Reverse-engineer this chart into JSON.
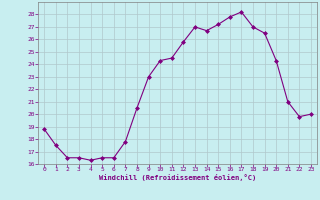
{
  "x": [
    0,
    1,
    2,
    3,
    4,
    5,
    6,
    7,
    8,
    9,
    10,
    11,
    12,
    13,
    14,
    15,
    16,
    17,
    18,
    19,
    20,
    21,
    22,
    23
  ],
  "y": [
    18.8,
    17.5,
    16.5,
    16.5,
    16.3,
    16.5,
    16.5,
    17.8,
    20.5,
    23.0,
    24.3,
    24.5,
    25.8,
    27.0,
    26.7,
    27.2,
    27.8,
    28.2,
    27.0,
    26.5,
    24.3,
    21.0,
    19.8,
    20.0
  ],
  "xlabel": "Windchill (Refroidissement éolien,°C)",
  "ylim": [
    16,
    29
  ],
  "xlim": [
    -0.5,
    23.5
  ],
  "yticks": [
    16,
    17,
    18,
    19,
    20,
    21,
    22,
    23,
    24,
    25,
    26,
    27,
    28
  ],
  "xticks": [
    0,
    1,
    2,
    3,
    4,
    5,
    6,
    7,
    8,
    9,
    10,
    11,
    12,
    13,
    14,
    15,
    16,
    17,
    18,
    19,
    20,
    21,
    22,
    23
  ],
  "line_color": "#800080",
  "marker_color": "#800080",
  "bg_color": "#c8eef0",
  "grid_color": "#b0c8cc",
  "axes_label_color": "#800080",
  "tick_color": "#800080",
  "spine_color": "#808080"
}
